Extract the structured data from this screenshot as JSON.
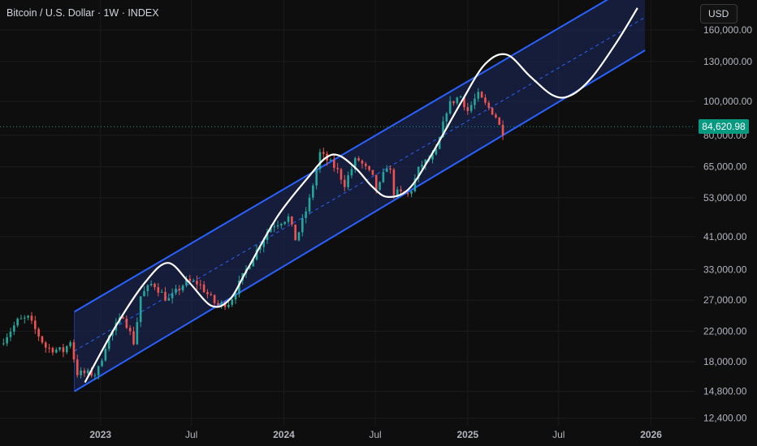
{
  "title": "Bitcoin / U.S. Dollar · 1W · INDEX",
  "currency_button": "USD",
  "last_price": "84,620.98",
  "colors": {
    "background": "#0e0e0e",
    "grid": "#1c1c1c",
    "up": "#26a69a",
    "down": "#ef5350",
    "channel_line": "#2962ff",
    "channel_fill": "#1b2a5e",
    "projection": "#ffffff",
    "price_tag": "#089981",
    "axis_text": "#b2b5be"
  },
  "chart_data": {
    "type": "candlestick",
    "title": "Bitcoin / U.S. Dollar · 1W · INDEX",
    "y_scale": "log",
    "ylim": [
      11800,
      195000
    ],
    "xlim": [
      "2022-06-15",
      "2026-03-30"
    ],
    "y_ticks": [
      {
        "value": 12400,
        "label": "12,400.00"
      },
      {
        "value": 14800,
        "label": "14,800.00"
      },
      {
        "value": 18000,
        "label": "18,000.00"
      },
      {
        "value": 22000,
        "label": "22,000.00"
      },
      {
        "value": 27000,
        "label": "27,000.00"
      },
      {
        "value": 33000,
        "label": "33,000.00"
      },
      {
        "value": 41000,
        "label": "41,000.00"
      },
      {
        "value": 53000,
        "label": "53,000.00"
      },
      {
        "value": 65000,
        "label": "65,000.00"
      },
      {
        "value": 80000,
        "label": "80,000.00"
      },
      {
        "value": 100000,
        "label": "100,000.00"
      },
      {
        "value": 130000,
        "label": "130,000.00"
      },
      {
        "value": 160000,
        "label": "160,000.00"
      }
    ],
    "x_ticks": [
      {
        "date": "2023-01-01",
        "label": "2023",
        "bold": true
      },
      {
        "date": "2023-07-01",
        "label": "Jul",
        "bold": false
      },
      {
        "date": "2024-01-01",
        "label": "2024",
        "bold": true
      },
      {
        "date": "2024-07-01",
        "label": "Jul",
        "bold": false
      },
      {
        "date": "2025-01-01",
        "label": "2025",
        "bold": true
      },
      {
        "date": "2025-07-01",
        "label": "Jul",
        "bold": false
      },
      {
        "date": "2026-01-01",
        "label": "2026",
        "bold": true
      }
    ],
    "last_price": 84620.98,
    "close_anchors": [
      [
        "2022-06-15",
        20200
      ],
      [
        "2022-07-20",
        23500
      ],
      [
        "2022-08-10",
        24000
      ],
      [
        "2022-09-15",
        19700
      ],
      [
        "2022-10-20",
        19300
      ],
      [
        "2022-11-05",
        21000
      ],
      [
        "2022-11-12",
        16700
      ],
      [
        "2022-12-25",
        16600
      ],
      [
        "2023-01-15",
        20900
      ],
      [
        "2023-02-15",
        24500
      ],
      [
        "2023-03-10",
        20100
      ],
      [
        "2023-03-20",
        27500
      ],
      [
        "2023-04-15",
        30300
      ],
      [
        "2023-05-15",
        26900
      ],
      [
        "2023-06-20",
        30500
      ],
      [
        "2023-07-15",
        30200
      ],
      [
        "2023-08-20",
        26100
      ],
      [
        "2023-09-15",
        26600
      ],
      [
        "2023-10-25",
        34500
      ],
      [
        "2023-12-05",
        43900
      ],
      [
        "2024-01-10",
        46500
      ],
      [
        "2024-01-25",
        40000
      ],
      [
        "2024-02-20",
        51500
      ],
      [
        "2024-03-13",
        71000
      ],
      [
        "2024-04-15",
        64000
      ],
      [
        "2024-05-01",
        58000
      ],
      [
        "2024-05-25",
        69000
      ],
      [
        "2024-06-25",
        61000
      ],
      [
        "2024-07-05",
        55000
      ],
      [
        "2024-07-28",
        68000
      ],
      [
        "2024-08-05",
        55000
      ],
      [
        "2024-09-07",
        54000
      ],
      [
        "2024-09-28",
        65500
      ],
      [
        "2024-10-28",
        70000
      ],
      [
        "2024-11-08",
        80000
      ],
      [
        "2024-11-22",
        97000
      ],
      [
        "2024-12-17",
        104000
      ],
      [
        "2025-01-01",
        94000
      ],
      [
        "2025-01-21",
        104500
      ],
      [
        "2025-02-05",
        98000
      ],
      [
        "2025-02-25",
        91500
      ],
      [
        "2025-03-03",
        86000
      ],
      [
        "2025-03-12",
        82000
      ],
      [
        "2025-03-18",
        84600
      ]
    ],
    "channel": {
      "start_date": "2022-11-10",
      "end_date": "2025-12-20",
      "upper": [
        25000,
        226000
      ],
      "middle": [
        19300,
        174000
      ],
      "lower": [
        14800,
        140000
      ]
    },
    "projection_curve": [
      [
        "2022-12-01",
        15700
      ],
      [
        "2023-02-01",
        22800
      ],
      [
        "2023-04-01",
        30500
      ],
      [
        "2023-05-15",
        34500
      ],
      [
        "2023-06-25",
        30500
      ],
      [
        "2023-08-10",
        26000
      ],
      [
        "2023-09-15",
        27100
      ],
      [
        "2023-10-20",
        33000
      ],
      [
        "2023-12-20",
        47000
      ],
      [
        "2024-02-20",
        61000
      ],
      [
        "2024-03-25",
        69000
      ],
      [
        "2024-04-20",
        70000
      ],
      [
        "2024-05-25",
        64000
      ],
      [
        "2024-06-25",
        57000
      ],
      [
        "2024-07-25",
        53300
      ],
      [
        "2024-09-05",
        56000
      ],
      [
        "2024-10-20",
        70000
      ],
      [
        "2024-12-20",
        100000
      ],
      [
        "2025-02-05",
        128000
      ],
      [
        "2025-03-20",
        136000
      ],
      [
        "2025-05-05",
        118000
      ],
      [
        "2025-06-20",
        104000
      ],
      [
        "2025-07-25",
        104000
      ],
      [
        "2025-09-05",
        117000
      ],
      [
        "2025-10-25",
        148000
      ],
      [
        "2025-12-05",
        185000
      ]
    ]
  }
}
